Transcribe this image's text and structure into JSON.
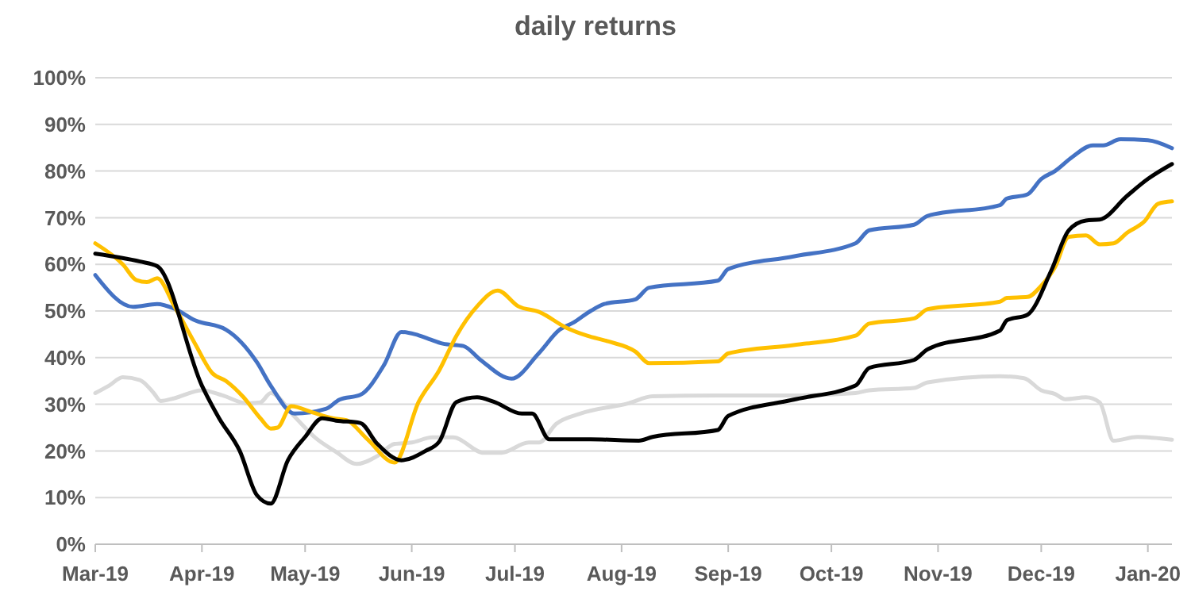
{
  "chart_data": {
    "type": "line",
    "title": "daily returns",
    "xlim": [
      "2019-03-01",
      "2020-01-08"
    ],
    "xticks": [
      {
        "value": "2019-03-01",
        "label": "Mar-19"
      },
      {
        "value": "2019-04-01",
        "label": "Apr-19"
      },
      {
        "value": "2019-05-01",
        "label": "May-19"
      },
      {
        "value": "2019-06-01",
        "label": "Jun-19"
      },
      {
        "value": "2019-07-01",
        "label": "Jul-19"
      },
      {
        "value": "2019-08-01",
        "label": "Aug-19"
      },
      {
        "value": "2019-09-01",
        "label": "Sep-19"
      },
      {
        "value": "2019-10-01",
        "label": "Oct-19"
      },
      {
        "value": "2019-11-01",
        "label": "Nov-19"
      },
      {
        "value": "2019-12-01",
        "label": "Dec-19"
      },
      {
        "value": "2020-01-01",
        "label": "Jan-20"
      }
    ],
    "ylim": [
      0,
      100
    ],
    "yticks": [
      {
        "value": 0,
        "label": "0%"
      },
      {
        "value": 10,
        "label": "10%"
      },
      {
        "value": 20,
        "label": "20%"
      },
      {
        "value": 30,
        "label": "30%"
      },
      {
        "value": 40,
        "label": "40%"
      },
      {
        "value": 50,
        "label": "50%"
      },
      {
        "value": 60,
        "label": "60%"
      },
      {
        "value": 70,
        "label": "70%"
      },
      {
        "value": 80,
        "label": "80%"
      },
      {
        "value": 90,
        "label": "90%"
      },
      {
        "value": 100,
        "label": "100%"
      }
    ],
    "grid": "y",
    "marker": "none",
    "line_style": "solid",
    "series": [
      {
        "color": "#d9d9d9",
        "x": [
          "2019-03-01",
          "2019-03-05",
          "2019-03-09",
          "2019-03-14",
          "2019-03-18",
          "2019-03-20",
          "2019-03-24",
          "2019-04-01",
          "2019-04-07",
          "2019-04-14",
          "2019-04-18",
          "2019-04-21",
          "2019-04-28",
          "2019-05-04",
          "2019-05-10",
          "2019-05-16",
          "2019-05-22",
          "2019-05-27",
          "2019-06-01",
          "2019-06-07",
          "2019-06-13",
          "2019-06-22",
          "2019-06-27",
          "2019-07-05",
          "2019-07-08",
          "2019-07-13",
          "2019-07-20",
          "2019-08-03",
          "2019-08-10",
          "2019-08-29",
          "2019-09-20",
          "2019-10-08",
          "2019-10-12",
          "2019-10-25",
          "2019-10-29",
          "2019-11-19",
          "2019-11-26",
          "2019-12-01",
          "2019-12-05",
          "2019-12-08",
          "2019-12-14",
          "2019-12-18",
          "2019-12-22",
          "2019-12-29",
          "2020-01-08"
        ],
        "values": [
          32.4,
          34,
          35.8,
          35.2,
          32.4,
          30.7,
          31.3,
          33,
          31.9,
          30.2,
          30.4,
          32.4,
          27.3,
          22.8,
          19.8,
          17.2,
          18.9,
          21.5,
          21.8,
          22.9,
          22.9,
          19.6,
          19.6,
          21.8,
          21.8,
          25.8,
          28,
          30.2,
          31.7,
          31.9,
          31.9,
          32.4,
          33,
          33.5,
          34.7,
          36,
          35.6,
          33,
          32.2,
          31.1,
          31.5,
          30.4,
          22.2,
          23,
          22.4
        ]
      },
      {
        "color": "#4472c4",
        "x": [
          "2019-03-01",
          "2019-03-12",
          "2019-03-19",
          "2019-03-24",
          "2019-03-30",
          "2019-04-08",
          "2019-04-17",
          "2019-04-21",
          "2019-04-28",
          "2019-05-07",
          "2019-05-11",
          "2019-05-17",
          "2019-05-24",
          "2019-05-29",
          "2019-06-02",
          "2019-06-06",
          "2019-06-10",
          "2019-06-16",
          "2019-06-21",
          "2019-06-30",
          "2019-07-08",
          "2019-07-14",
          "2019-07-18",
          "2019-07-23",
          "2019-07-27",
          "2019-08-05",
          "2019-08-09",
          "2019-08-29",
          "2019-09-01",
          "2019-09-20",
          "2019-10-08",
          "2019-10-12",
          "2019-10-25",
          "2019-10-29",
          "2019-11-19",
          "2019-11-21",
          "2019-11-27",
          "2019-12-01",
          "2019-12-05",
          "2019-12-10",
          "2019-12-16",
          "2019-12-19",
          "2019-12-24",
          "2020-01-01",
          "2020-01-08"
        ],
        "values": [
          57.7,
          50.9,
          51.5,
          50.5,
          48,
          46,
          39,
          34,
          28,
          29,
          31,
          32,
          38.5,
          45.5,
          45,
          44,
          43,
          42.5,
          39.5,
          35.5,
          41,
          46,
          47.5,
          50,
          51.5,
          52.5,
          55,
          56.5,
          59,
          61.7,
          64.5,
          67.3,
          68.5,
          70.4,
          72.7,
          74.1,
          75,
          78.3,
          80,
          83,
          85.5,
          85.5,
          86.8,
          86.6,
          84.9
        ]
      },
      {
        "color": "#ffc000",
        "x": [
          "2019-03-01",
          "2019-03-09",
          "2019-03-13",
          "2019-03-16",
          "2019-03-19",
          "2019-03-24",
          "2019-03-30",
          "2019-04-04",
          "2019-04-08",
          "2019-04-13",
          "2019-04-18",
          "2019-04-21",
          "2019-04-23",
          "2019-04-27",
          "2019-05-03",
          "2019-05-09",
          "2019-05-13",
          "2019-05-19",
          "2019-05-27",
          "2019-06-03",
          "2019-06-09",
          "2019-06-14",
          "2019-06-20",
          "2019-06-26",
          "2019-07-02",
          "2019-07-08",
          "2019-07-16",
          "2019-07-22",
          "2019-07-28",
          "2019-08-05",
          "2019-08-09",
          "2019-08-29",
          "2019-09-01",
          "2019-09-20",
          "2019-10-08",
          "2019-10-12",
          "2019-10-25",
          "2019-10-29",
          "2019-11-19",
          "2019-11-21",
          "2019-11-27",
          "2019-12-01",
          "2019-12-05",
          "2019-12-09",
          "2019-12-14",
          "2019-12-18",
          "2019-12-22",
          "2019-12-26",
          "2019-12-31",
          "2020-01-04",
          "2020-01-08"
        ],
        "values": [
          64.5,
          60,
          56.6,
          56.2,
          57,
          51,
          43,
          36.7,
          35,
          31.6,
          27,
          24.8,
          25,
          29.6,
          28.3,
          27,
          26.6,
          22.6,
          17.5,
          30.5,
          37.3,
          44.7,
          51,
          54.4,
          51,
          49.8,
          46.4,
          44.7,
          43.5,
          41.3,
          38.8,
          39.2,
          40.9,
          42.7,
          44.7,
          47.3,
          48.4,
          50.4,
          52,
          52.8,
          53,
          55.4,
          59.4,
          65.9,
          66.2,
          64.3,
          64.5,
          66.8,
          69.2,
          73,
          73.5
        ]
      },
      {
        "color": "#000000",
        "x": [
          "2019-03-01",
          "2019-03-14",
          "2019-03-19",
          "2019-04-01",
          "2019-04-06",
          "2019-04-12",
          "2019-04-17",
          "2019-04-21",
          "2019-04-26",
          "2019-05-01",
          "2019-05-06",
          "2019-05-10",
          "2019-05-17",
          "2019-05-22",
          "2019-05-29",
          "2019-06-05",
          "2019-06-09",
          "2019-06-14",
          "2019-06-20",
          "2019-06-25",
          "2019-07-03",
          "2019-07-06",
          "2019-07-11",
          "2019-07-23",
          "2019-08-06",
          "2019-08-10",
          "2019-08-29",
          "2019-09-01",
          "2019-09-20",
          "2019-10-08",
          "2019-10-12",
          "2019-10-25",
          "2019-10-29",
          "2019-11-19",
          "2019-11-21",
          "2019-11-27",
          "2019-12-04",
          "2019-12-09",
          "2019-12-14",
          "2019-12-18",
          "2019-12-26",
          "2020-01-01",
          "2020-01-08"
        ],
        "values": [
          62.3,
          60.6,
          59.6,
          34,
          27,
          20,
          10.5,
          8.7,
          18,
          23,
          27,
          26.5,
          26,
          21.5,
          18,
          20,
          22,
          30.5,
          31.5,
          30.5,
          28,
          28,
          22.5,
          22.5,
          22.2,
          23,
          24.5,
          27.5,
          31,
          34,
          37.8,
          39.5,
          41.8,
          45.8,
          48,
          49.2,
          58.8,
          67.3,
          69.4,
          69.6,
          74.7,
          78.3,
          81.5
        ]
      }
    ]
  }
}
